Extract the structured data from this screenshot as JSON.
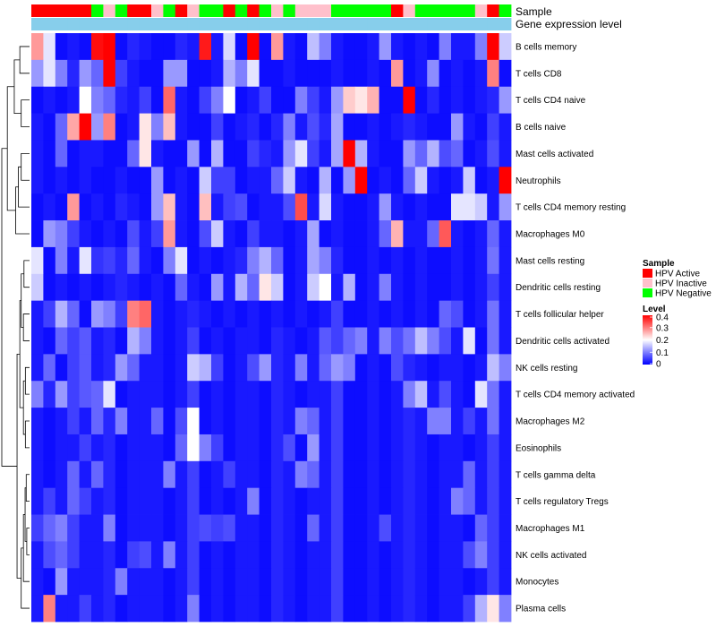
{
  "chart_data": {
    "type": "heatmap",
    "annotation_labels": [
      "Sample",
      "Gene expression level"
    ],
    "rows": [
      "B cells memory",
      "T cells CD8",
      "T cells CD4 naive",
      "B cells naive",
      "Mast cells activated",
      "Neutrophils",
      "T cells CD4 memory resting",
      "Macrophages M0",
      "Mast cells resting",
      "Dendritic cells resting",
      "T cells follicular helper",
      "Dendritic cells activated",
      "NK cells resting",
      "T cells CD4 memory activated",
      "Macrophages M2",
      "Eosinophils",
      "T cells gamma delta",
      "T cells regulatory  Tregs",
      "Macrophages M1",
      "NK cells activated",
      "Monocytes",
      "Plasma cells"
    ],
    "sample_groups": [
      "A",
      "A",
      "A",
      "A",
      "A",
      "N",
      "I",
      "N",
      "A",
      "A",
      "I",
      "N",
      "A",
      "I",
      "N",
      "N",
      "A",
      "N",
      "A",
      "N",
      "I",
      "N",
      "I",
      "I",
      "I",
      "N",
      "N",
      "N",
      "N",
      "N",
      "A",
      "I",
      "N",
      "N",
      "N",
      "N",
      "N",
      "I",
      "A",
      "N"
    ],
    "gene_expression_level": "uniform",
    "legend": {
      "sample": {
        "title": "Sample",
        "entries": [
          {
            "key": "A",
            "label": "HPV Active",
            "color": "#ff0000"
          },
          {
            "key": "I",
            "label": "HPV Inactive",
            "color": "#ffc0cb"
          },
          {
            "key": "N",
            "label": "HPV Negative",
            "color": "#00ff00"
          }
        ]
      },
      "level": {
        "title": "Level",
        "ticks": [
          "0.4",
          "0.3",
          "0.2",
          "0.1",
          "0"
        ],
        "range": [
          0,
          0.4
        ],
        "colors": [
          "#0000ff",
          "#ffffff",
          "#ff0000"
        ]
      }
    },
    "expression_color": "#87ceeb",
    "values": [
      [
        0.28,
        0.18,
        0.01,
        0.02,
        0.01,
        0.39,
        0.4,
        0.01,
        0.03,
        0.02,
        0.01,
        0.01,
        0.03,
        0.02,
        0.38,
        0.02,
        0.17,
        0.01,
        0.4,
        0.01,
        0.28,
        0.02,
        0.01,
        0.15,
        0.1,
        0.02,
        0.01,
        0.01,
        0.02,
        0.12,
        0.02,
        0.01,
        0.02,
        0.01,
        0.1,
        0.02,
        0.02,
        0.1,
        0.4,
        0.16
      ],
      [
        0.12,
        0.18,
        0.1,
        0.03,
        0.12,
        0.08,
        0.4,
        0.05,
        0.02,
        0.01,
        0.01,
        0.12,
        0.12,
        0.01,
        0.01,
        0.02,
        0.14,
        0.1,
        0.18,
        0.01,
        0.01,
        0.02,
        0.01,
        0.01,
        0.01,
        0.02,
        0.01,
        0.01,
        0.02,
        0.01,
        0.28,
        0.01,
        0.02,
        0.11,
        0.01,
        0.02,
        0.01,
        0.02,
        0.3,
        0.01
      ],
      [
        0.01,
        0.02,
        0.01,
        0.02,
        0.2,
        0.1,
        0.08,
        0.03,
        0.02,
        0.05,
        0.01,
        0.32,
        0.02,
        0.01,
        0.05,
        0.1,
        0.2,
        0.01,
        0.02,
        0.05,
        0.01,
        0.01,
        0.1,
        0.05,
        0.02,
        0.12,
        0.24,
        0.22,
        0.26,
        0.01,
        0.01,
        0.4,
        0.01,
        0.03,
        0.01,
        0.02,
        0.01,
        0.02,
        0.03,
        0.12
      ],
      [
        0.02,
        0.01,
        0.08,
        0.27,
        0.4,
        0.12,
        0.3,
        0.01,
        0.02,
        0.22,
        0.1,
        0.25,
        0.02,
        0.01,
        0.01,
        0.05,
        0.01,
        0.02,
        0.03,
        0.01,
        0.03,
        0.1,
        0.02,
        0.06,
        0.03,
        0.13,
        0.01,
        0.01,
        0.02,
        0.01,
        0.02,
        0.03,
        0.02,
        0.01,
        0.01,
        0.12,
        0.02,
        0.01,
        0.05,
        0.02
      ],
      [
        0.02,
        0.01,
        0.08,
        0.01,
        0.02,
        0.02,
        0.01,
        0.01,
        0.08,
        0.22,
        0.02,
        0.01,
        0.01,
        0.12,
        0.01,
        0.14,
        0.01,
        0.01,
        0.05,
        0.03,
        0.02,
        0.12,
        0.18,
        0.05,
        0.02,
        0.13,
        0.4,
        0.14,
        0.02,
        0.01,
        0.01,
        0.12,
        0.08,
        0.14,
        0.06,
        0.08,
        0.01,
        0.02,
        0.06,
        0.02
      ],
      [
        0.02,
        0.01,
        0.02,
        0.01,
        0.02,
        0.01,
        0.01,
        0.02,
        0.01,
        0.01,
        0.12,
        0.01,
        0.02,
        0.01,
        0.16,
        0.05,
        0.05,
        0.01,
        0.02,
        0.02,
        0.08,
        0.16,
        0.02,
        0.01,
        0.14,
        0.01,
        0.12,
        0.4,
        0.01,
        0.02,
        0.01,
        0.08,
        0.16,
        0.02,
        0.01,
        0.02,
        0.16,
        0.01,
        0.02,
        0.4
      ],
      [
        0.01,
        0.02,
        0.01,
        0.28,
        0.01,
        0.02,
        0.01,
        0.03,
        0.02,
        0.01,
        0.12,
        0.25,
        0.02,
        0.01,
        0.25,
        0.02,
        0.05,
        0.06,
        0.01,
        0.02,
        0.02,
        0.06,
        0.34,
        0.02,
        0.17,
        0.02,
        0.01,
        0.01,
        0.02,
        0.12,
        0.02,
        0.01,
        0.02,
        0.01,
        0.01,
        0.18,
        0.18,
        0.16,
        0.02,
        0.12
      ],
      [
        0.01,
        0.12,
        0.1,
        0.05,
        0.02,
        0.01,
        0.02,
        0.01,
        0.06,
        0.02,
        0.05,
        0.28,
        0.02,
        0.01,
        0.06,
        0.16,
        0.02,
        0.01,
        0.05,
        0.02,
        0.02,
        0.01,
        0.02,
        0.13,
        0.01,
        0.02,
        0.01,
        0.01,
        0.02,
        0.08,
        0.26,
        0.02,
        0.02,
        0.08,
        0.33,
        0.02,
        0.01,
        0.02,
        0.08,
        0.02
      ],
      [
        0.18,
        0.01,
        0.1,
        0.02,
        0.18,
        0.04,
        0.05,
        0.03,
        0.08,
        0.02,
        0.01,
        0.1,
        0.18,
        0.01,
        0.02,
        0.01,
        0.02,
        0.03,
        0.1,
        0.14,
        0.08,
        0.01,
        0.02,
        0.13,
        0.1,
        0.03,
        0.01,
        0.01,
        0.02,
        0.01,
        0.02,
        0.01,
        0.02,
        0.01,
        0.01,
        0.02,
        0.01,
        0.02,
        0.09,
        0.02
      ],
      [
        0.16,
        0.01,
        0.02,
        0.01,
        0.02,
        0.01,
        0.02,
        0.03,
        0.02,
        0.01,
        0.02,
        0.01,
        0.08,
        0.02,
        0.01,
        0.12,
        0.02,
        0.14,
        0.08,
        0.22,
        0.16,
        0.01,
        0.02,
        0.16,
        0.2,
        0.02,
        0.14,
        0.01,
        0.02,
        0.1,
        0.02,
        0.01,
        0.02,
        0.01,
        0.01,
        0.02,
        0.01,
        0.02,
        0.05,
        0.02
      ],
      [
        0.02,
        0.05,
        0.14,
        0.08,
        0.01,
        0.12,
        0.1,
        0.05,
        0.3,
        0.32,
        0.02,
        0.01,
        0.02,
        0.03,
        0.02,
        0.01,
        0.02,
        0.01,
        0.02,
        0.01,
        0.02,
        0.01,
        0.02,
        0.01,
        0.02,
        0.05,
        0.01,
        0.01,
        0.02,
        0.01,
        0.02,
        0.01,
        0.02,
        0.01,
        0.08,
        0.06,
        0.01,
        0.02,
        0.09,
        0.02
      ],
      [
        0.02,
        0.01,
        0.08,
        0.05,
        0.07,
        0.02,
        0.03,
        0.01,
        0.14,
        0.1,
        0.02,
        0.01,
        0.02,
        0.05,
        0.01,
        0.02,
        0.01,
        0.02,
        0.02,
        0.01,
        0.03,
        0.02,
        0.01,
        0.02,
        0.07,
        0.05,
        0.08,
        0.1,
        0.02,
        0.1,
        0.06,
        0.09,
        0.15,
        0.1,
        0.06,
        0.02,
        0.18,
        0.01,
        0.09,
        0.02
      ],
      [
        0.02,
        0.08,
        0.01,
        0.05,
        0.07,
        0.02,
        0.03,
        0.12,
        0.08,
        0.02,
        0.02,
        0.01,
        0.02,
        0.16,
        0.14,
        0.05,
        0.01,
        0.02,
        0.06,
        0.12,
        0.03,
        0.02,
        0.1,
        0.02,
        0.08,
        0.12,
        0.1,
        0.01,
        0.02,
        0.01,
        0.06,
        0.03,
        0.02,
        0.01,
        0.02,
        0.02,
        0.01,
        0.02,
        0.15,
        0.1
      ],
      [
        0.1,
        0.03,
        0.12,
        0.05,
        0.07,
        0.08,
        0.18,
        0.01,
        0.02,
        0.02,
        0.02,
        0.01,
        0.02,
        0.05,
        0.01,
        0.02,
        0.01,
        0.02,
        0.02,
        0.01,
        0.03,
        0.02,
        0.01,
        0.02,
        0.02,
        0.05,
        0.01,
        0.01,
        0.02,
        0.01,
        0.02,
        0.1,
        0.15,
        0.02,
        0.06,
        0.02,
        0.01,
        0.18,
        0.09,
        0.02
      ],
      [
        0.02,
        0.01,
        0.02,
        0.05,
        0.02,
        0.08,
        0.03,
        0.1,
        0.02,
        0.02,
        0.08,
        0.01,
        0.06,
        0.2,
        0.01,
        0.02,
        0.01,
        0.02,
        0.02,
        0.01,
        0.03,
        0.02,
        0.1,
        0.08,
        0.02,
        0.05,
        0.01,
        0.01,
        0.02,
        0.01,
        0.02,
        0.03,
        0.02,
        0.1,
        0.1,
        0.02,
        0.05,
        0.02,
        0.09,
        0.02
      ],
      [
        0.02,
        0.01,
        0.02,
        0.02,
        0.05,
        0.02,
        0.03,
        0.01,
        0.02,
        0.02,
        0.02,
        0.01,
        0.08,
        0.2,
        0.1,
        0.05,
        0.01,
        0.02,
        0.02,
        0.01,
        0.03,
        0.06,
        0.01,
        0.12,
        0.02,
        0.05,
        0.01,
        0.01,
        0.02,
        0.01,
        0.02,
        0.03,
        0.02,
        0.01,
        0.02,
        0.02,
        0.01,
        0.02,
        0.05,
        0.02
      ],
      [
        0.02,
        0.01,
        0.02,
        0.08,
        0.02,
        0.08,
        0.03,
        0.01,
        0.02,
        0.02,
        0.02,
        0.1,
        0.02,
        0.05,
        0.01,
        0.02,
        0.05,
        0.02,
        0.02,
        0.01,
        0.03,
        0.02,
        0.1,
        0.08,
        0.02,
        0.05,
        0.01,
        0.01,
        0.02,
        0.01,
        0.02,
        0.03,
        0.02,
        0.01,
        0.02,
        0.02,
        0.08,
        0.02,
        0.05,
        0.02
      ],
      [
        0.02,
        0.05,
        0.02,
        0.08,
        0.05,
        0.02,
        0.03,
        0.01,
        0.02,
        0.02,
        0.02,
        0.01,
        0.02,
        0.05,
        0.01,
        0.02,
        0.01,
        0.02,
        0.1,
        0.01,
        0.03,
        0.02,
        0.01,
        0.02,
        0.02,
        0.05,
        0.01,
        0.01,
        0.02,
        0.01,
        0.02,
        0.03,
        0.02,
        0.01,
        0.02,
        0.1,
        0.08,
        0.02,
        0.05,
        0.02
      ],
      [
        0.05,
        0.08,
        0.1,
        0.05,
        0.02,
        0.02,
        0.1,
        0.01,
        0.02,
        0.02,
        0.02,
        0.01,
        0.02,
        0.05,
        0.06,
        0.05,
        0.06,
        0.02,
        0.02,
        0.01,
        0.03,
        0.02,
        0.01,
        0.08,
        0.02,
        0.05,
        0.01,
        0.01,
        0.02,
        0.06,
        0.02,
        0.03,
        0.02,
        0.01,
        0.02,
        0.02,
        0.01,
        0.08,
        0.05,
        0.02
      ],
      [
        0.02,
        0.06,
        0.08,
        0.05,
        0.02,
        0.02,
        0.03,
        0.01,
        0.05,
        0.06,
        0.02,
        0.1,
        0.02,
        0.05,
        0.01,
        0.02,
        0.01,
        0.02,
        0.02,
        0.01,
        0.03,
        0.02,
        0.01,
        0.02,
        0.02,
        0.05,
        0.01,
        0.01,
        0.02,
        0.01,
        0.02,
        0.03,
        0.02,
        0.01,
        0.02,
        0.02,
        0.06,
        0.1,
        0.05,
        0.02
      ],
      [
        0.02,
        0.01,
        0.12,
        0.02,
        0.02,
        0.02,
        0.03,
        0.1,
        0.02,
        0.02,
        0.02,
        0.01,
        0.02,
        0.05,
        0.01,
        0.02,
        0.01,
        0.02,
        0.02,
        0.01,
        0.03,
        0.02,
        0.01,
        0.02,
        0.02,
        0.05,
        0.01,
        0.01,
        0.02,
        0.01,
        0.02,
        0.03,
        0.02,
        0.01,
        0.02,
        0.02,
        0.01,
        0.02,
        0.05,
        0.02
      ],
      [
        0.02,
        0.3,
        0.02,
        0.02,
        0.05,
        0.02,
        0.03,
        0.01,
        0.02,
        0.02,
        0.02,
        0.01,
        0.02,
        0.1,
        0.01,
        0.02,
        0.01,
        0.02,
        0.02,
        0.01,
        0.03,
        0.02,
        0.01,
        0.02,
        0.02,
        0.05,
        0.01,
        0.01,
        0.02,
        0.01,
        0.02,
        0.03,
        0.02,
        0.01,
        0.02,
        0.02,
        0.05,
        0.14,
        0.22,
        0.1
      ]
    ]
  }
}
